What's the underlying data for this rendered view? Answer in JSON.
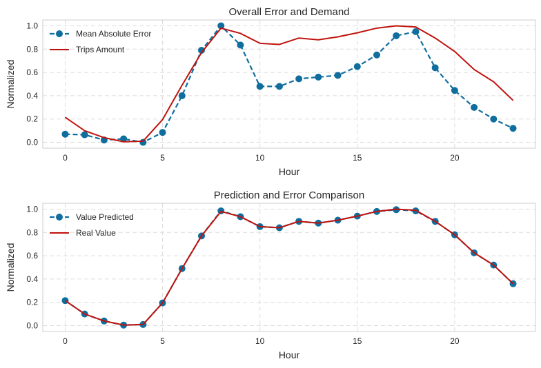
{
  "chart_data": [
    {
      "type": "line",
      "title": "Overall Error and Demand",
      "xlabel": "Hour",
      "ylabel": "Normalized",
      "xlim": [
        -1.15,
        24.15
      ],
      "ylim": [
        -0.05,
        1.05
      ],
      "xticks": [
        0,
        5,
        10,
        15,
        20
      ],
      "yticks": [
        0.0,
        0.2,
        0.4,
        0.6,
        0.8,
        1.0
      ],
      "grid": true,
      "legend_position": "top-left",
      "x": [
        0,
        1,
        2,
        3,
        4,
        5,
        6,
        7,
        8,
        9,
        10,
        11,
        12,
        13,
        14,
        15,
        16,
        17,
        18,
        19,
        20,
        21,
        22,
        23
      ],
      "series": [
        {
          "name": "Mean Absolute Error",
          "color": "#0f6e9e",
          "style": "dashed-markers",
          "values": [
            0.07,
            0.065,
            0.02,
            0.03,
            0.0,
            0.085,
            0.4,
            0.79,
            1.0,
            0.835,
            0.48,
            0.48,
            0.545,
            0.56,
            0.575,
            0.65,
            0.75,
            0.915,
            0.95,
            0.64,
            0.445,
            0.3,
            0.2,
            0.12
          ]
        },
        {
          "name": "Trips Amount",
          "color": "#c0120c",
          "style": "solid",
          "values": [
            0.215,
            0.1,
            0.04,
            0.005,
            0.01,
            0.195,
            0.49,
            0.77,
            0.98,
            0.935,
            0.85,
            0.84,
            0.895,
            0.88,
            0.905,
            0.94,
            0.98,
            1.0,
            0.99,
            0.895,
            0.78,
            0.625,
            0.52,
            0.36
          ]
        }
      ]
    },
    {
      "type": "line",
      "title": "Prediction and Error Comparison",
      "xlabel": "Hour",
      "ylabel": "Normalized",
      "xlim": [
        -1.15,
        24.15
      ],
      "ylim": [
        -0.05,
        1.05
      ],
      "xticks": [
        0,
        5,
        10,
        15,
        20
      ],
      "yticks": [
        0.0,
        0.2,
        0.4,
        0.6,
        0.8,
        1.0
      ],
      "grid": true,
      "legend_position": "top-left",
      "x": [
        0,
        1,
        2,
        3,
        4,
        5,
        6,
        7,
        8,
        9,
        10,
        11,
        12,
        13,
        14,
        15,
        16,
        17,
        18,
        19,
        20,
        21,
        22,
        23
      ],
      "series": [
        {
          "name": "Value Predicted",
          "color": "#0f6e9e",
          "style": "dashed-markers",
          "values": [
            0.215,
            0.1,
            0.04,
            0.005,
            0.01,
            0.195,
            0.49,
            0.77,
            0.985,
            0.935,
            0.85,
            0.84,
            0.895,
            0.88,
            0.905,
            0.94,
            0.98,
            0.995,
            0.985,
            0.895,
            0.78,
            0.625,
            0.52,
            0.36
          ]
        },
        {
          "name": "Real Value",
          "color": "#c0120c",
          "style": "solid",
          "values": [
            0.215,
            0.1,
            0.04,
            0.005,
            0.01,
            0.195,
            0.49,
            0.77,
            0.98,
            0.935,
            0.85,
            0.84,
            0.895,
            0.88,
            0.905,
            0.94,
            0.98,
            1.0,
            0.99,
            0.895,
            0.78,
            0.625,
            0.52,
            0.36
          ]
        }
      ]
    }
  ]
}
